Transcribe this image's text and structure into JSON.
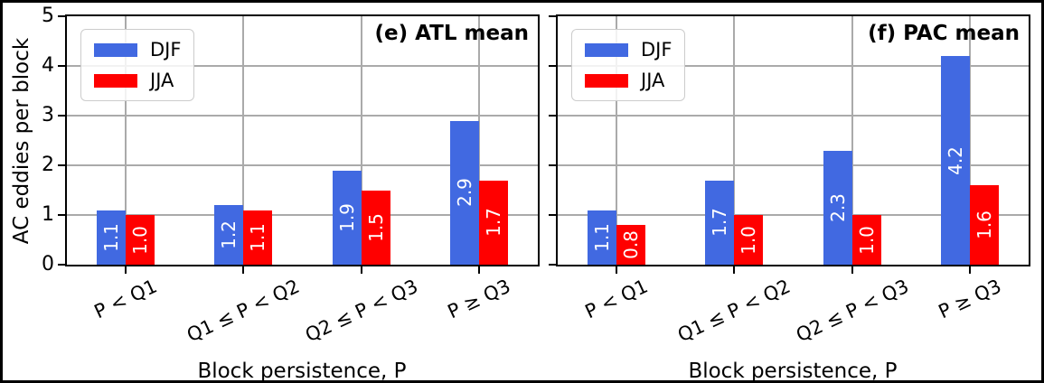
{
  "figure": {
    "background": "#ffffff",
    "border_color": "#000000",
    "grid_color": "#aaaaaa",
    "bar_label_color": "#ffffff"
  },
  "legend": {
    "items": [
      {
        "label": "DJF",
        "color": "#4169e1"
      },
      {
        "label": "JJA",
        "color": "#ff0000"
      }
    ]
  },
  "chart_data": [
    {
      "type": "bar",
      "title": "(e) ATL mean",
      "categories": [
        "P < Q1",
        "Q1 ≤ P < Q2",
        "Q2 ≤ P < Q3",
        "P ≥ Q3"
      ],
      "series": [
        {
          "name": "DJF",
          "color": "#4169e1",
          "values": [
            1.1,
            1.2,
            1.9,
            2.9
          ],
          "labels": [
            "1.1",
            "1.2",
            "1.9",
            "2.9"
          ]
        },
        {
          "name": "JJA",
          "color": "#ff0000",
          "values": [
            1.0,
            1.1,
            1.5,
            1.7
          ],
          "labels": [
            "1.0",
            "1.1",
            "1.5",
            "1.7"
          ]
        }
      ],
      "xlabel": "Block persistence, P",
      "ylabel": "AC eddies per block",
      "ylim": [
        0,
        5
      ],
      "yticks": [
        0,
        1,
        2,
        3,
        4,
        5
      ],
      "show_ytick_labels": true,
      "grid": true,
      "legend_position": "upper left"
    },
    {
      "type": "bar",
      "title": "(f) PAC mean",
      "categories": [
        "P < Q1",
        "Q1 ≤ P < Q2",
        "Q2 ≤ P < Q3",
        "P ≥ Q3"
      ],
      "series": [
        {
          "name": "DJF",
          "color": "#4169e1",
          "values": [
            1.1,
            1.7,
            2.3,
            4.2
          ],
          "labels": [
            "1.1",
            "1.7",
            "2.3",
            "4.2"
          ]
        },
        {
          "name": "JJA",
          "color": "#ff0000",
          "values": [
            0.8,
            1.0,
            1.0,
            1.6
          ],
          "labels": [
            "0.8",
            "1.0",
            "1.0",
            "1.6"
          ]
        }
      ],
      "xlabel": "Block persistence, P",
      "ylabel": "",
      "ylim": [
        0,
        5
      ],
      "yticks": [
        0,
        1,
        2,
        3,
        4,
        5
      ],
      "show_ytick_labels": false,
      "grid": true,
      "legend_position": "upper left"
    }
  ]
}
